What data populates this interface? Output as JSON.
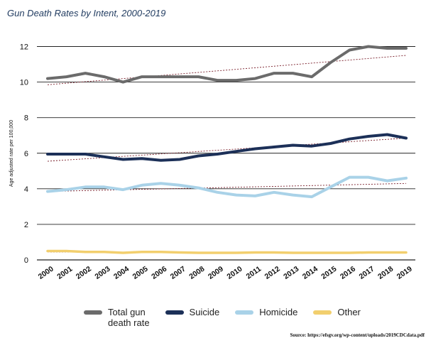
{
  "chart_data": {
    "type": "line",
    "title": "Gun Death Rates by Intent, 2000-2019",
    "xlabel": "",
    "ylabel": "Age adjusted rate per 100,000",
    "ylim": [
      0,
      13
    ],
    "yticks": [
      0,
      2,
      4,
      6,
      8,
      10,
      12
    ],
    "grid": true,
    "legend_position": "bottom",
    "categories": [
      "2000",
      "2001",
      "2002",
      "2003",
      "2004",
      "2005",
      "2006",
      "2007",
      "2008",
      "2009",
      "2010",
      "2011",
      "2012",
      "2013",
      "2014",
      "2015",
      "2016",
      "2017",
      "2018",
      "2019"
    ],
    "series": [
      {
        "name": "Total gun death rate",
        "color": "#6b6b6b",
        "values": [
          10.2,
          10.3,
          10.5,
          10.3,
          10.0,
          10.3,
          10.3,
          10.3,
          10.3,
          10.1,
          10.1,
          10.2,
          10.5,
          10.5,
          10.3,
          11.1,
          11.8,
          12.0,
          11.9,
          11.9
        ],
        "trend": [
          9.85,
          11.5
        ]
      },
      {
        "name": "Suicide",
        "color": "#1c3058",
        "values": [
          5.95,
          5.95,
          5.95,
          5.8,
          5.65,
          5.7,
          5.6,
          5.65,
          5.85,
          5.95,
          6.1,
          6.25,
          6.35,
          6.45,
          6.4,
          6.55,
          6.8,
          6.95,
          7.05,
          6.85
        ],
        "trend": [
          5.55,
          6.85
        ]
      },
      {
        "name": "Homicide",
        "color": "#a9d2e8",
        "values": [
          3.85,
          3.95,
          4.1,
          4.1,
          3.95,
          4.2,
          4.3,
          4.2,
          4.05,
          3.8,
          3.65,
          3.6,
          3.8,
          3.65,
          3.55,
          4.1,
          4.65,
          4.65,
          4.45,
          4.6
        ],
        "trend": [
          3.85,
          4.3
        ]
      },
      {
        "name": "Other",
        "color": "#f2cf6e",
        "values": [
          0.5,
          0.5,
          0.45,
          0.45,
          0.4,
          0.45,
          0.45,
          0.42,
          0.4,
          0.4,
          0.4,
          0.42,
          0.42,
          0.4,
          0.4,
          0.4,
          0.4,
          0.42,
          0.42,
          0.42
        ],
        "trend": [
          0.45,
          0.4
        ]
      }
    ],
    "legend": [
      "Total gun\ndeath rate",
      "Suicide",
      "Homicide",
      "Other"
    ],
    "source": "Source: https://efsgv.org/wp-content/uploads/2019CDCdata.pdf"
  }
}
